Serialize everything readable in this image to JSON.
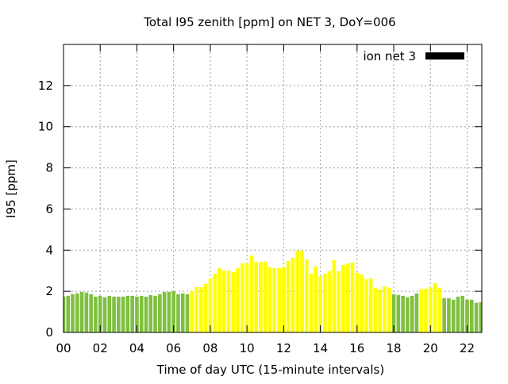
{
  "chart_data": {
    "type": "bar",
    "title": "Total I95 zenith [ppm] on NET 3, DoY=006",
    "xlabel": "Time of day UTC (15-minute intervals)",
    "ylabel": "I95 [ppm]",
    "xlim": [
      0,
      22.8
    ],
    "ylim": [
      0,
      14
    ],
    "xticks": [
      0,
      2,
      4,
      6,
      8,
      10,
      12,
      14,
      16,
      18,
      20,
      22
    ],
    "xtick_labels": [
      "00",
      "02",
      "04",
      "06",
      "08",
      "10",
      "12",
      "14",
      "16",
      "18",
      "20",
      "22"
    ],
    "yticks": [
      0,
      2,
      4,
      6,
      8,
      10,
      12
    ],
    "ytick_labels": [
      "0",
      "2",
      "4",
      "6",
      "8",
      "10",
      "12"
    ],
    "grid": true,
    "legend": {
      "placement": "top-right",
      "entries": [
        {
          "name": "ion net 3",
          "color": "#000000"
        }
      ]
    },
    "bar_colors": {
      "g": "#80c040",
      "y": "#ffff00"
    },
    "x_step_hours": 0.25,
    "values": [
      1.74,
      1.78,
      1.86,
      1.9,
      1.97,
      1.94,
      1.86,
      1.74,
      1.78,
      1.71,
      1.78,
      1.74,
      1.74,
      1.74,
      1.78,
      1.78,
      1.74,
      1.78,
      1.74,
      1.82,
      1.78,
      1.86,
      1.97,
      1.97,
      2.0,
      1.86,
      1.9,
      1.86,
      2.0,
      2.2,
      2.2,
      2.36,
      2.63,
      2.86,
      3.13,
      3.01,
      3.01,
      2.94,
      3.13,
      3.36,
      3.36,
      3.74,
      3.44,
      3.44,
      3.44,
      3.17,
      3.13,
      3.13,
      3.17,
      3.47,
      3.63,
      3.97,
      3.97,
      3.55,
      2.86,
      3.21,
      2.74,
      2.86,
      2.97,
      3.51,
      2.97,
      3.28,
      3.36,
      3.4,
      2.9,
      2.82,
      2.59,
      2.63,
      2.17,
      2.09,
      2.24,
      2.17,
      1.86,
      1.82,
      1.78,
      1.71,
      1.78,
      1.9,
      2.09,
      2.13,
      2.2,
      2.4,
      2.17,
      1.67,
      1.67,
      1.59,
      1.74,
      1.78,
      1.59,
      1.59,
      1.44,
      1.47
    ],
    "colors": "ggggggggggggggggggggggggggggyyyyyyyyyyyyyyyyyyyyyyyyyyyyyyyyyyyyyyyyyyyyggggggyyyyyggggggggg"
  }
}
